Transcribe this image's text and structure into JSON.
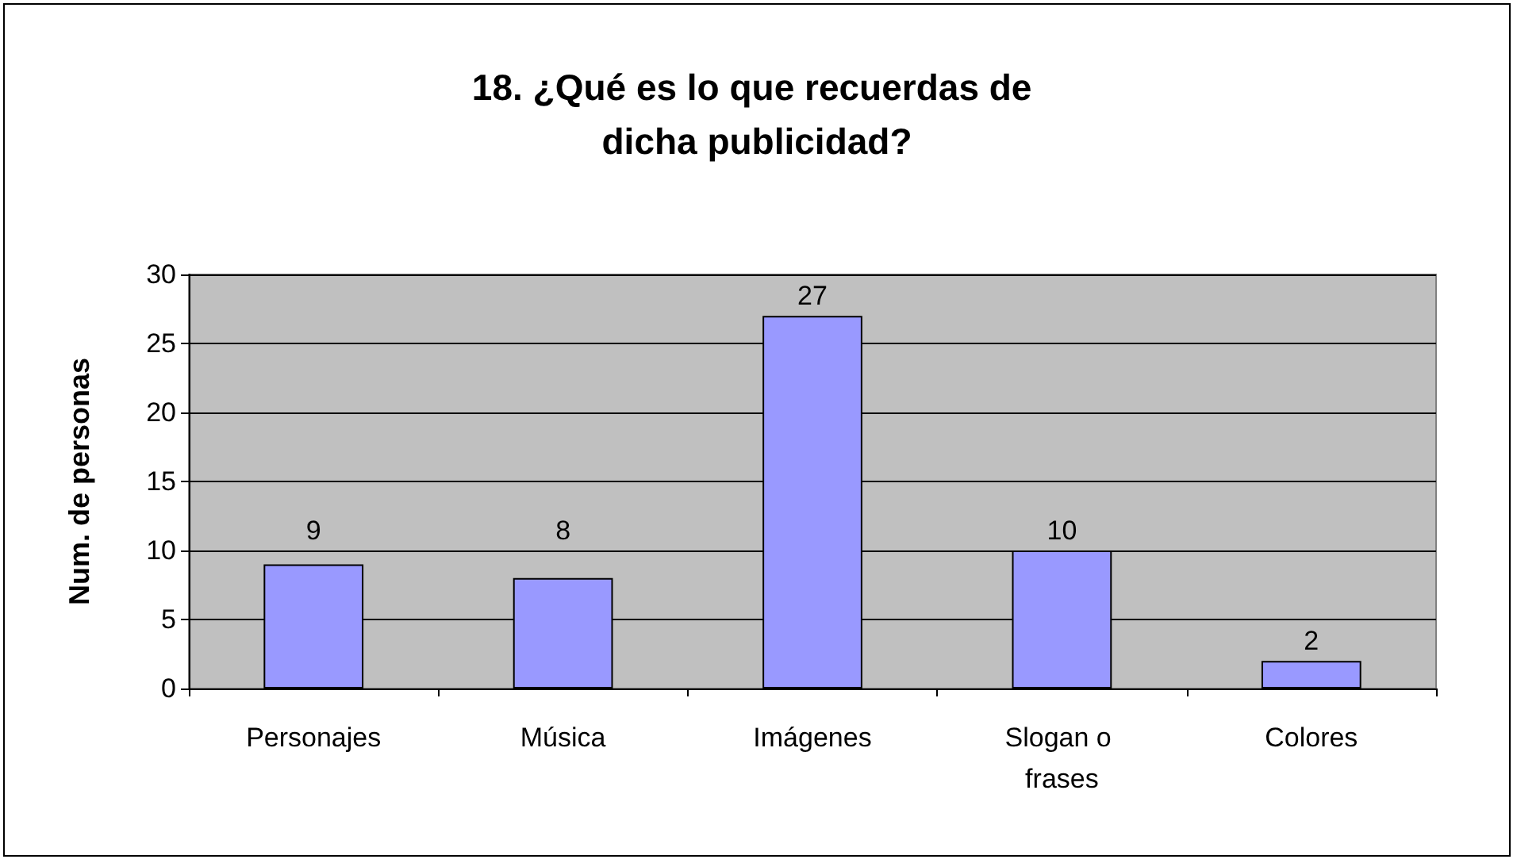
{
  "chart_data": {
    "type": "bar",
    "title": "18. ¿Qué es lo que recuerdas de dicha publicidad?",
    "ylabel": "Num. de personas",
    "categories": [
      "Personajes",
      "Música",
      "Imágenes",
      "Slogan o frases",
      "Colores"
    ],
    "values": [
      9,
      8,
      27,
      10,
      2
    ],
    "color": "#9999ff",
    "ylim": [
      0,
      30
    ],
    "yticks": [
      0,
      5,
      10,
      15,
      20,
      25,
      30
    ],
    "grid": "y",
    "data_labels": true
  }
}
